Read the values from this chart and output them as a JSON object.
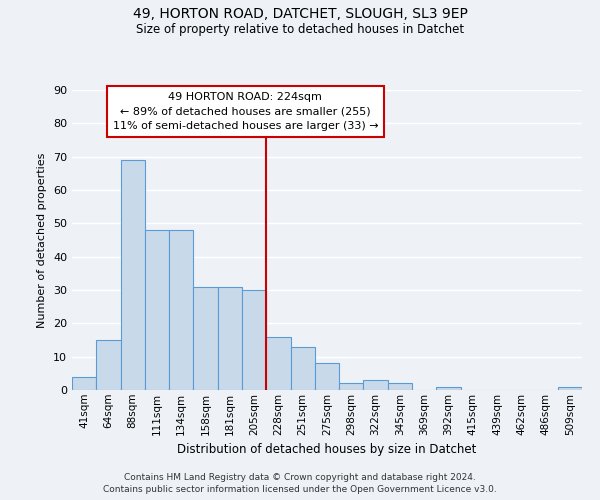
{
  "title1": "49, HORTON ROAD, DATCHET, SLOUGH, SL3 9EP",
  "title2": "Size of property relative to detached houses in Datchet",
  "xlabel": "Distribution of detached houses by size in Datchet",
  "ylabel": "Number of detached properties",
  "bar_labels": [
    "41sqm",
    "64sqm",
    "88sqm",
    "111sqm",
    "134sqm",
    "158sqm",
    "181sqm",
    "205sqm",
    "228sqm",
    "251sqm",
    "275sqm",
    "298sqm",
    "322sqm",
    "345sqm",
    "369sqm",
    "392sqm",
    "415sqm",
    "439sqm",
    "462sqm",
    "486sqm",
    "509sqm"
  ],
  "bar_heights": [
    4,
    15,
    69,
    48,
    48,
    31,
    31,
    30,
    16,
    13,
    8,
    2,
    3,
    2,
    0,
    1,
    0,
    0,
    0,
    0,
    1
  ],
  "bar_color": "#c8daea",
  "bar_edge_color": "#5b9bd5",
  "vline_color": "#cc0000",
  "vline_x_index": 8,
  "ylim": [
    0,
    90
  ],
  "yticks": [
    0,
    10,
    20,
    30,
    40,
    50,
    60,
    70,
    80,
    90
  ],
  "annotation_title": "49 HORTON ROAD: 224sqm",
  "annotation_line1": "← 89% of detached houses are smaller (255)",
  "annotation_line2": "11% of semi-detached houses are larger (33) →",
  "box_facecolor": "#ffffff",
  "box_edgecolor": "#cc0000",
  "footnote1": "Contains HM Land Registry data © Crown copyright and database right 2024.",
  "footnote2": "Contains public sector information licensed under the Open Government Licence v3.0.",
  "bg_color": "#eef2f7",
  "grid_color": "#ffffff"
}
